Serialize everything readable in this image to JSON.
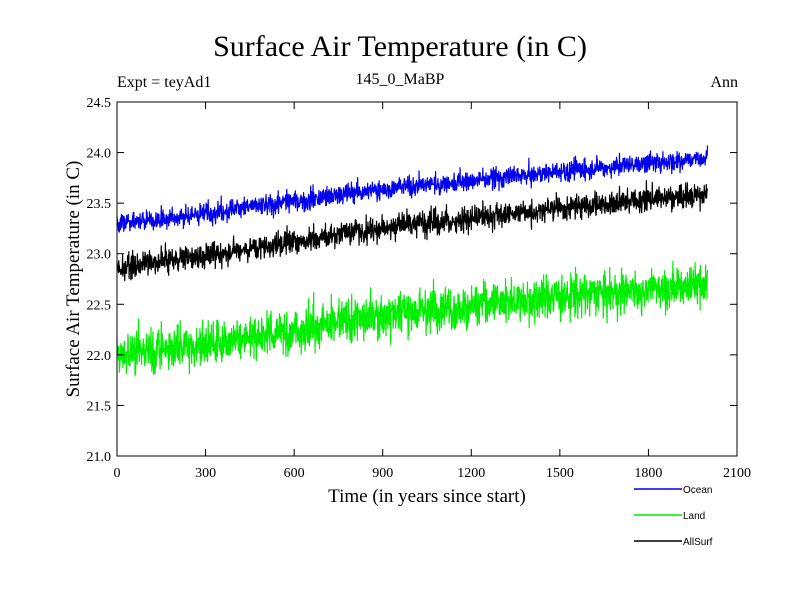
{
  "chart_data": {
    "type": "line",
    "title": "Surface Air Temperature (in C)",
    "subtitle": "145_0_MaBP",
    "expt_label": "Expt = teyAd1",
    "season_label": "Ann",
    "xlabel": "Time (in years since start)",
    "ylabel": "Surface Air Temperature (in C)",
    "xlim": [
      0,
      2100
    ],
    "ylim": [
      21.0,
      24.5
    ],
    "xticks": [
      0,
      300,
      600,
      900,
      1200,
      1500,
      1800,
      2100
    ],
    "xtick_labels": [
      "0",
      "300",
      "600",
      "900",
      "1200",
      "1500",
      "1800",
      "2100"
    ],
    "yticks": [
      21.0,
      21.5,
      22.0,
      22.5,
      23.0,
      23.5,
      24.0,
      24.5
    ],
    "ytick_labels": [
      "21.0",
      "21.5",
      "22.0",
      "22.5",
      "23.0",
      "23.5",
      "24.0",
      "24.5"
    ],
    "x_range": [
      0,
      2000
    ],
    "series": [
      {
        "name": "Ocean",
        "color": "#0000ee",
        "x": [
          0,
          100,
          200,
          300,
          400,
          500,
          600,
          700,
          800,
          900,
          1000,
          1100,
          1200,
          1300,
          1400,
          1500,
          1600,
          1700,
          1800,
          1900,
          2000
        ],
        "trend": [
          23.3,
          23.33,
          23.36,
          23.4,
          23.44,
          23.48,
          23.52,
          23.56,
          23.6,
          23.64,
          23.67,
          23.7,
          23.72,
          23.75,
          23.78,
          23.81,
          23.84,
          23.87,
          23.9,
          23.92,
          23.95
        ],
        "noise": 0.09
      },
      {
        "name": "Land",
        "color": "#00ee00",
        "x": [
          0,
          100,
          200,
          300,
          400,
          500,
          600,
          700,
          800,
          900,
          1000,
          1100,
          1200,
          1300,
          1400,
          1500,
          1600,
          1700,
          1800,
          1900,
          2000
        ],
        "trend": [
          22.0,
          22.05,
          22.08,
          22.1,
          22.14,
          22.2,
          22.25,
          22.3,
          22.35,
          22.4,
          22.43,
          22.46,
          22.48,
          22.52,
          22.55,
          22.58,
          22.6,
          22.62,
          22.65,
          22.68,
          22.7
        ],
        "noise": 0.2
      },
      {
        "name": "AllSurf",
        "color": "#000000",
        "x": [
          0,
          100,
          200,
          300,
          400,
          500,
          600,
          700,
          800,
          900,
          1000,
          1100,
          1200,
          1300,
          1400,
          1500,
          1600,
          1700,
          1800,
          1900,
          2000
        ],
        "trend": [
          22.85,
          22.9,
          22.95,
          22.98,
          23.02,
          23.07,
          23.12,
          23.17,
          23.22,
          23.26,
          23.29,
          23.32,
          23.35,
          23.38,
          23.42,
          23.45,
          23.48,
          23.51,
          23.54,
          23.56,
          23.58
        ],
        "noise": 0.11
      }
    ]
  }
}
